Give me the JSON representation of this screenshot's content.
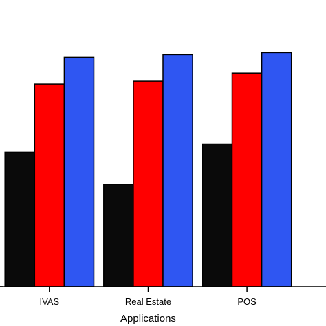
{
  "chart_data": {
    "type": "bar",
    "title": "",
    "xlabel": "Applications",
    "ylabel": "",
    "categories": [
      "IVAS",
      "Real Estate",
      "POS",
      ""
    ],
    "series": [
      {
        "color": "#0a0a0a",
        "values": [
          197,
          150,
          209,
          null
        ]
      },
      {
        "color": "#ff0000",
        "values": [
          297,
          301,
          313,
          null
        ]
      },
      {
        "color": "#2f56f2",
        "values": [
          336,
          340,
          343,
          null
        ]
      }
    ],
    "ylim": [
      0,
      420
    ],
    "xlim": [
      -0.5,
      2.8
    ],
    "grid": false,
    "legend": "none"
  },
  "colors": {
    "axis": "#000000",
    "bar_edge": "#000000"
  }
}
